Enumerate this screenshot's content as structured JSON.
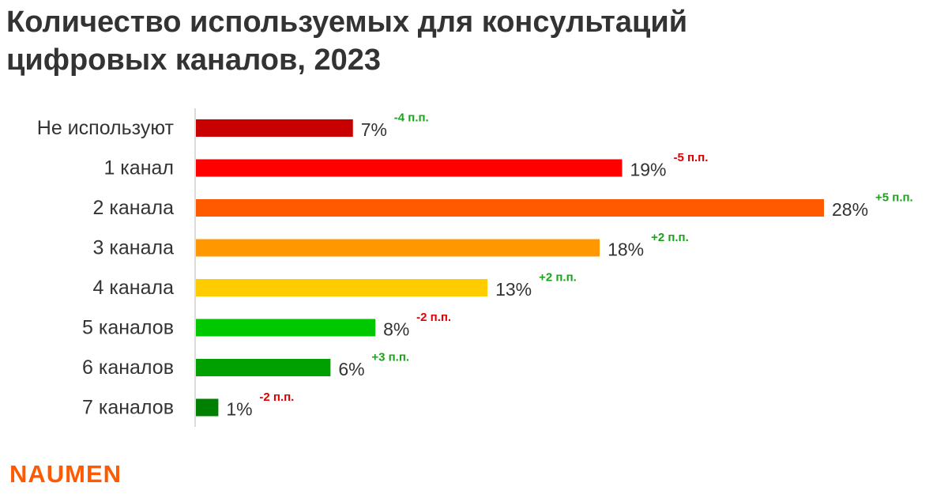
{
  "title": "Количество используемых для консультаций цифровых каналов, 2023",
  "logo": "NAUMEN",
  "chart_data": {
    "type": "bar",
    "orientation": "horizontal",
    "categories": [
      "Не используют",
      "1 канал",
      "2 канала",
      "3 канала",
      "4 канала",
      "5 каналов",
      "6 каналов",
      "7 каналов"
    ],
    "values": [
      7,
      19,
      28,
      18,
      13,
      8,
      6,
      1
    ],
    "value_labels": [
      "7%",
      "19%",
      "28%",
      "18%",
      "13%",
      "8%",
      "6%",
      "1%"
    ],
    "change_labels": [
      "-4 п.п.",
      "-5 п.п.",
      "+5 п.п.",
      "+2 п.п.",
      "+2 п.п.",
      "-2 п.п.",
      "+3 п.п.",
      "-2 п.п."
    ],
    "change_colors": [
      "#1aa31a",
      "#e00000",
      "#1aa31a",
      "#1aa31a",
      "#1aa31a",
      "#e00000",
      "#1aa31a",
      "#e00000"
    ],
    "bar_colors": [
      "#c80000",
      "#ff0000",
      "#ff5a00",
      "#ff9800",
      "#ffcc00",
      "#00c800",
      "#00a000",
      "#008000"
    ],
    "xlim": [
      0,
      28
    ],
    "grid": false,
    "legend": "none"
  }
}
